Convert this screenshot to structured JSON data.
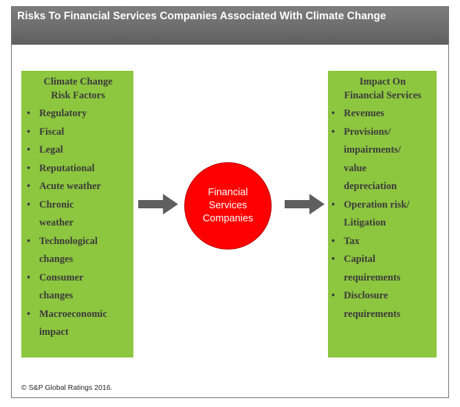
{
  "header": {
    "title": "Risks To Financial Services Companies Associated With Climate Change"
  },
  "left_box": {
    "title_line1": "Climate Change",
    "title_line2": "Risk Factors",
    "bullet_char": "•",
    "items": [
      [
        "Regulatory"
      ],
      [
        "Fiscal"
      ],
      [
        "Legal"
      ],
      [
        "Reputational"
      ],
      [
        "Acute weather"
      ],
      [
        "Chronic",
        "weather"
      ],
      [
        "Technological",
        "changes"
      ],
      [
        "Consumer",
        "changes"
      ],
      [
        "Macroeconomic",
        "impact"
      ]
    ]
  },
  "center": {
    "line1": "Financial",
    "line2": "Services",
    "line3": "Companies"
  },
  "right_box": {
    "title_line1": "Impact On",
    "title_line2": "Financial Services",
    "bullet_char": "•",
    "items": [
      [
        "Revenues"
      ],
      [
        "Provisions/",
        "impairments/",
        "value",
        "depreciation"
      ],
      [
        "Operation risk/",
        "Litigation"
      ],
      [
        "Tax"
      ],
      [
        "Capital",
        "requirements"
      ],
      [
        "Disclosure",
        "requirements"
      ]
    ]
  },
  "footer": {
    "copyright": "© S&P Global Ratings 2016."
  },
  "colors": {
    "header_bg": "#6e6e6e",
    "box_bg": "#8dc63f",
    "circle_bg": "#ff0000",
    "arrow": "#5f5f5f"
  }
}
